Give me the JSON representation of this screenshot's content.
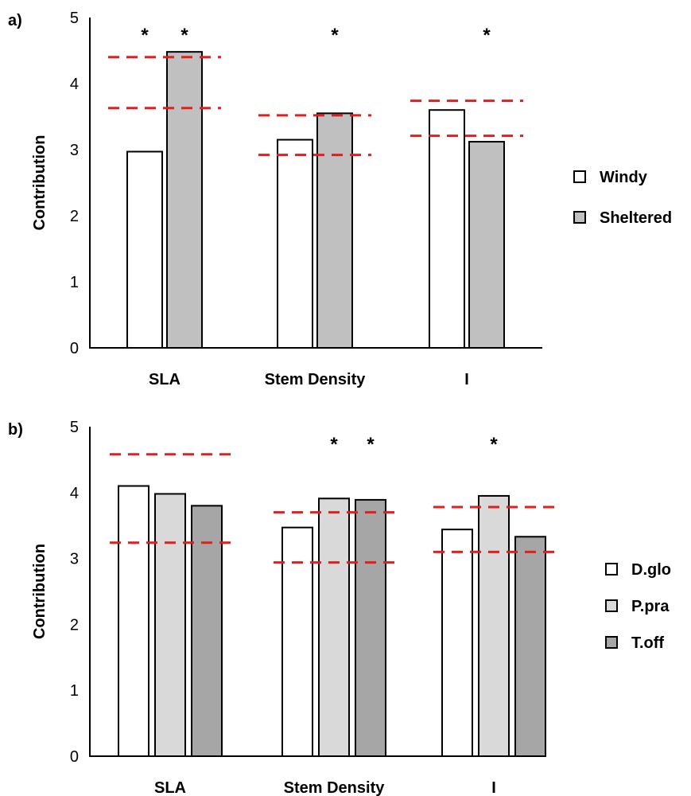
{
  "chart_data": [
    {
      "panel_label": "a)",
      "type": "bar",
      "ylabel": "Contribution",
      "ylim": [
        0,
        5
      ],
      "yticks": [
        "0",
        "1",
        "2",
        "3",
        "4",
        "5"
      ],
      "categories": [
        "SLA",
        "Stem Density",
        "I"
      ],
      "series": [
        {
          "name": "Windy",
          "color": "#ffffff",
          "values": [
            2.97,
            3.15,
            3.6
          ]
        },
        {
          "name": "Sheltered",
          "color": "#c0c0c0",
          "values": [
            4.48,
            3.55,
            3.12
          ]
        }
      ],
      "significance": [
        {
          "category": "SLA",
          "series": "Windy",
          "mark": "*"
        },
        {
          "category": "SLA",
          "series": "Sheltered",
          "mark": "*"
        },
        {
          "category": "Stem Density",
          "series": "Sheltered",
          "mark": "*"
        },
        {
          "category": "I",
          "series": "Sheltered",
          "mark": "*"
        }
      ],
      "reference_bounds": [
        {
          "category": "SLA",
          "lower": 3.63,
          "upper": 4.4
        },
        {
          "category": "Stem Density",
          "lower": 2.92,
          "upper": 3.52
        },
        {
          "category": "I",
          "lower": 3.21,
          "upper": 3.74
        }
      ],
      "reference_line_color": "#e0201e",
      "legend_position": "right"
    },
    {
      "panel_label": "b)",
      "type": "bar",
      "ylabel": "Contribution",
      "ylim": [
        0,
        5
      ],
      "yticks": [
        "0",
        "1",
        "2",
        "3",
        "4",
        "5"
      ],
      "categories": [
        "SLA",
        "Stem Density",
        "I"
      ],
      "series": [
        {
          "name": "D.glo",
          "color": "#ffffff",
          "values": [
            4.1,
            3.47,
            3.44
          ]
        },
        {
          "name": "P.pra",
          "color": "#d9d9d9",
          "values": [
            3.98,
            3.91,
            3.95
          ]
        },
        {
          "name": "T.off",
          "color": "#a6a6a6",
          "values": [
            3.8,
            3.89,
            3.33
          ]
        }
      ],
      "significance": [
        {
          "category": "Stem Density",
          "series": "P.pra",
          "mark": "*"
        },
        {
          "category": "Stem Density",
          "series": "T.off",
          "mark": "*"
        },
        {
          "category": "I",
          "series": "P.pra",
          "mark": "*"
        }
      ],
      "reference_bounds": [
        {
          "category": "SLA",
          "lower": 3.24,
          "upper": 4.58
        },
        {
          "category": "Stem Density",
          "lower": 2.94,
          "upper": 3.7
        },
        {
          "category": "I",
          "lower": 3.1,
          "upper": 3.78
        }
      ],
      "reference_line_color": "#e0201e",
      "legend_position": "right"
    }
  ]
}
